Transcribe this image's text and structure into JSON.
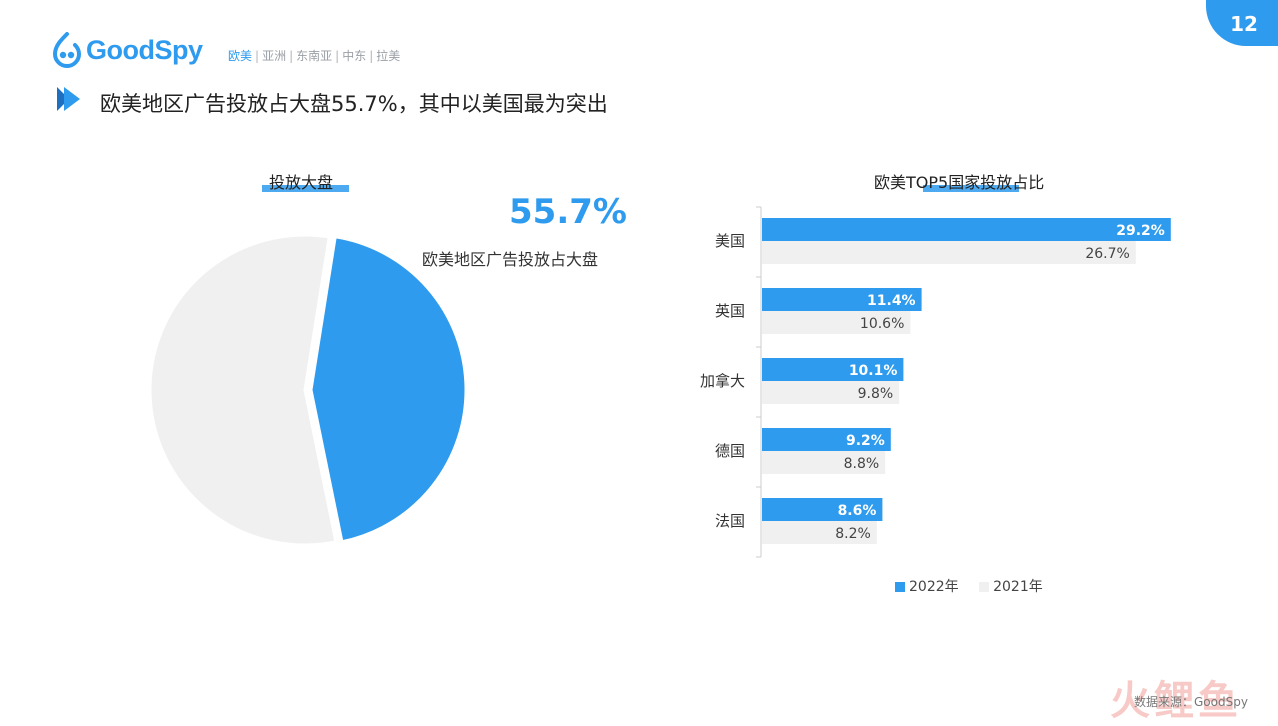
{
  "page_number": "12",
  "brand": {
    "name": "GoodSpy",
    "color": "#2e9bee"
  },
  "region_nav": [
    {
      "label": "欧美",
      "active": true
    },
    {
      "label": "亚洲",
      "active": false
    },
    {
      "label": "东南亚",
      "active": false
    },
    {
      "label": "中东",
      "active": false
    },
    {
      "label": "拉美",
      "active": false
    }
  ],
  "page_title": "欧美地区广告投放占大盘55.7%，其中以美国最为突出",
  "pie_section": {
    "title": "投放大盘",
    "highlight_value": "55.7%",
    "highlight_caption": "欧美地区广告投放占大盘"
  },
  "bar_section": {
    "title": "欧美TOP5国家投放占比"
  },
  "legend": [
    {
      "label": "2022年",
      "color": "#2e9bee"
    },
    {
      "label": "2021年",
      "color": "#f0f0f0"
    }
  ],
  "source": "数据来源：GoodSpy",
  "watermark": "火鲤鱼",
  "chart_data": [
    {
      "type": "pie",
      "title": "投放大盘",
      "slices": [
        {
          "value": 55.7,
          "color": "#f0f0f0"
        },
        {
          "value": 44.3,
          "color": "#2e9bee"
        }
      ]
    },
    {
      "type": "bar",
      "orientation": "horizontal",
      "title": "欧美TOP5国家投放占比",
      "categories": [
        "美国",
        "英国",
        "加拿大",
        "德国",
        "法国"
      ],
      "series": [
        {
          "name": "2022年",
          "color": "#2e9bee",
          "values": [
            29.2,
            11.4,
            10.1,
            9.2,
            8.6
          ],
          "labels": [
            "29.2%",
            "11.4%",
            "10.1%",
            "9.2%",
            "8.6%"
          ]
        },
        {
          "name": "2021年",
          "color": "#f0f0f0",
          "values": [
            26.7,
            10.6,
            9.8,
            8.8,
            8.2
          ],
          "labels": [
            "26.7%",
            "10.6%",
            "9.8%",
            "8.8%",
            "8.2%"
          ]
        }
      ],
      "xlim": [
        0,
        30
      ],
      "legend_position": "bottom"
    }
  ]
}
